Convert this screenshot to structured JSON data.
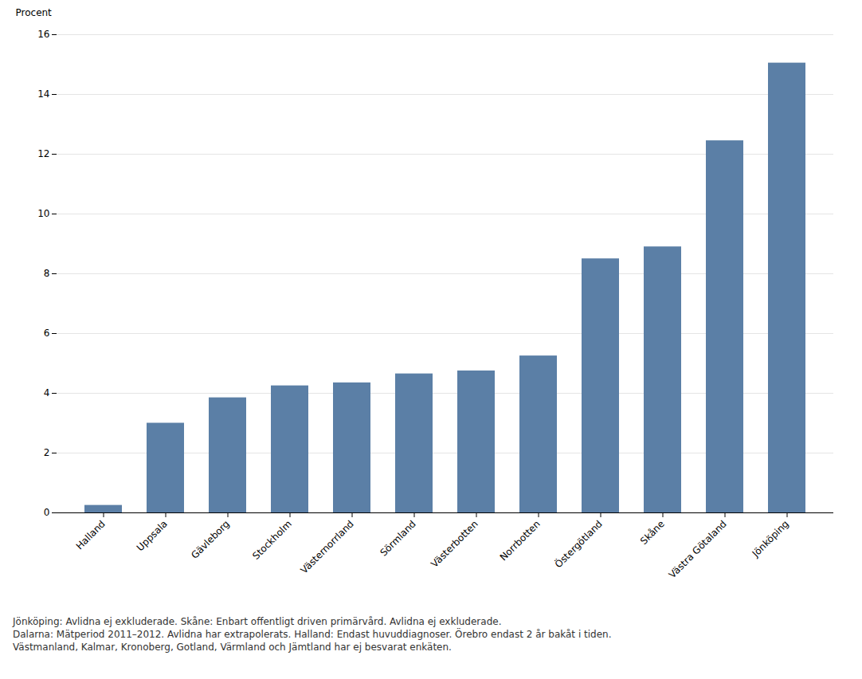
{
  "chart_data": {
    "type": "bar",
    "categories": [
      "Halland",
      "Uppsala",
      "Gävleborg",
      "Stockholm",
      "Västernorrland",
      "Sörmland",
      "Västerbotten",
      "Norrbotten",
      "Östergötland",
      "Skåne",
      "Västra Götaland",
      "Jönköping"
    ],
    "values": [
      0.25,
      3.0,
      3.85,
      4.25,
      4.35,
      4.65,
      4.75,
      5.25,
      8.5,
      8.9,
      12.45,
      15.05
    ],
    "color": "#5b7fa6",
    "ylabel": "Procent",
    "ylim": [
      0,
      16
    ],
    "yticks": [
      0,
      2,
      4,
      6,
      8,
      10,
      12,
      14,
      16
    ],
    "grid": true,
    "footnotes": [
      "Jönköping: Avlidna ej exkluderade.   Skåne: Enbart offentligt driven primärvård. Avlidna ej exkluderade.",
      "Dalarna: Mätperiod 2011–2012. Avlidna har extrapolerats.   Halland: Endast huvuddiagnoser.   Örebro endast 2 år bakåt i tiden.",
      "Västmanland, Kalmar, Kronoberg, Gotland, Värmland och Jämtland har ej besvarat enkäten."
    ]
  }
}
